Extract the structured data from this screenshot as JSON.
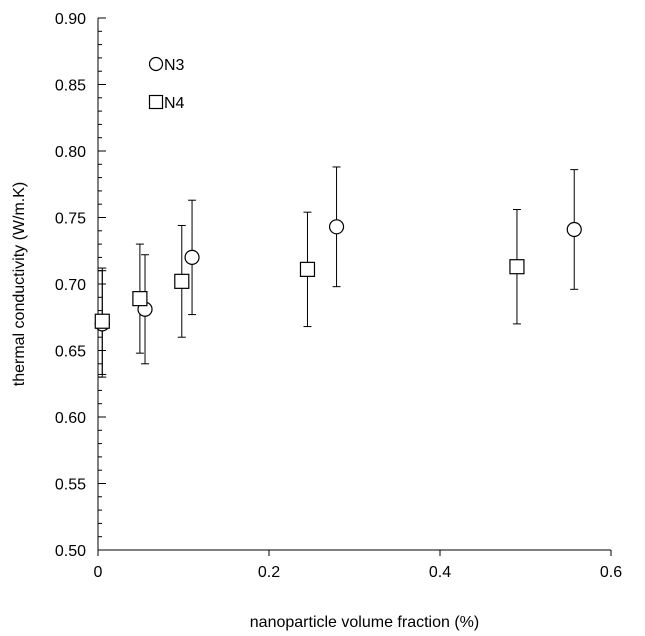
{
  "chart_data": {
    "type": "scatter",
    "xlabel": "nanoparticle volume fraction (%)",
    "ylabel": "thermal conductivity  (W/m.K)",
    "xlim": [
      0,
      0.6
    ],
    "ylim": [
      0.5,
      0.9
    ],
    "x_ticks": [
      0,
      0.2,
      0.4,
      0.6
    ],
    "x_tick_labels": [
      "0",
      "0.2",
      "0.4",
      "0.6"
    ],
    "y_ticks": [
      0.5,
      0.55,
      0.6,
      0.65,
      0.7,
      0.75,
      0.8,
      0.85,
      0.9
    ],
    "y_tick_labels": [
      "0.50",
      "0.55",
      "0.60",
      "0.65",
      "0.70",
      "0.75",
      "0.80",
      "0.85",
      "0.90"
    ],
    "grid": false,
    "legend_position": "top-left",
    "series": [
      {
        "name": "N3",
        "marker": "circle",
        "points": [
          {
            "x": 0.005,
            "y": 0.67,
            "err": 0.04
          },
          {
            "x": 0.055,
            "y": 0.681,
            "err": 0.041
          },
          {
            "x": 0.11,
            "y": 0.72,
            "err": 0.043
          },
          {
            "x": 0.279,
            "y": 0.743,
            "err": 0.045
          },
          {
            "x": 0.557,
            "y": 0.741,
            "err": 0.045
          }
        ]
      },
      {
        "name": "N4",
        "marker": "square",
        "points": [
          {
            "x": 0.005,
            "y": 0.672,
            "err": 0.04
          },
          {
            "x": 0.049,
            "y": 0.689,
            "err": 0.041
          },
          {
            "x": 0.098,
            "y": 0.702,
            "err": 0.042
          },
          {
            "x": 0.245,
            "y": 0.711,
            "err": 0.043
          },
          {
            "x": 0.49,
            "y": 0.713,
            "err": 0.043
          }
        ]
      }
    ]
  }
}
